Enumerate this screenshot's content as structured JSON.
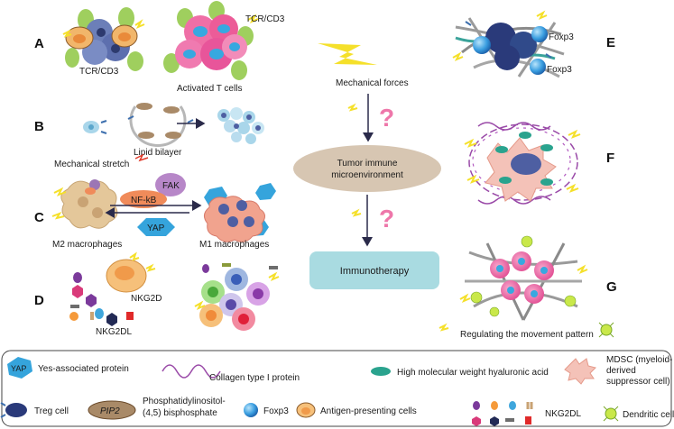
{
  "panels": {
    "a": "A",
    "b": "B",
    "c": "C",
    "d": "D",
    "e": "E",
    "f": "F",
    "g": "G"
  },
  "labels": {
    "tcr_cd3_left": "TCR/CD3",
    "tcr_cd3_right": "TCR/CD3",
    "activated_t_cells": "Activated T cells",
    "lipid_bilayer": "Lipid bilayer",
    "mechanical_stretch": "Mechanical stretch",
    "fak": "FAK",
    "nfkb": "NF-kB",
    "yap": "YAP",
    "m2_macrophages": "M2 macrophages",
    "m1_macrophages": "M1 macrophages",
    "nkg2d": "NKG2D",
    "nkg2dl": "NKG2DL",
    "mechanical_forces": "Mechanical forces",
    "question_mark": "?",
    "tme_line1": "Tumor immune",
    "tme_line2": "microenvironment",
    "immunotherapy": "Immunotherapy",
    "foxp3_top": "Foxp3",
    "foxp3_bottom": "Foxp3",
    "regulating": "Regulating the movement pattern"
  },
  "legend": {
    "yap_badge": "YAP",
    "yap": "Yes-associated protein",
    "collagen": "Collagen type I protein",
    "hyaluronic": "High molecular weight hyaluronic acid",
    "mdsc_line1": "MDSC (myeloid-",
    "mdsc_line2": "derived",
    "mdsc_line3": "suppressor cell)",
    "treg": "Treg cell",
    "pip2_badge": "PIP2",
    "pip2_line1": "Phosphatidylinositol-",
    "pip2_line2": "(4,5) bisphosphate",
    "foxp3": "Foxp3",
    "apc": "Antigen-presenting cells",
    "nkg2dl": "NKG2DL",
    "dendritic": "Dendritic cell"
  },
  "colors": {
    "lightning": "#f5e02a",
    "question": "#ee77aa",
    "tme_fill": "#d7c6b2",
    "immuno_fill": "#a9dbe1",
    "arrow": "#2a2a4a"
  }
}
